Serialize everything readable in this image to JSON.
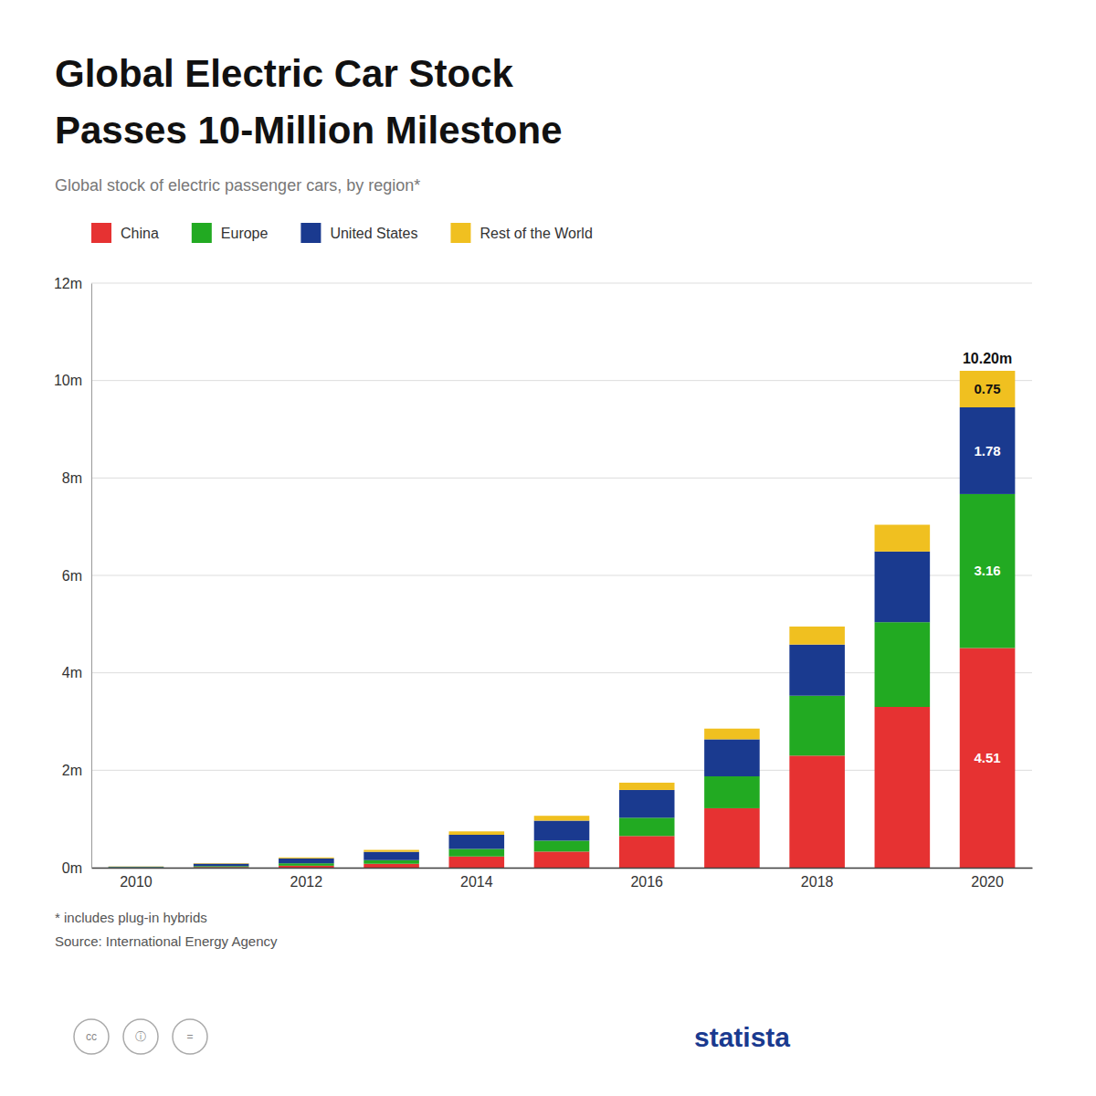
{
  "chart_data": {
    "type": "bar",
    "stacked": true,
    "title": [
      "Global Electric Car Stock",
      "Passes 10-Million Milestone"
    ],
    "subtitle": "Global stock of electric passenger cars, by region*",
    "categories": [
      "2010",
      null,
      "2012",
      null,
      "2014",
      null,
      "2016",
      null,
      "2018",
      null,
      "2020"
    ],
    "series": [
      {
        "name": "China",
        "color": "#e63232",
        "values": [
          0.001,
          0.013,
          0.04,
          0.08,
          0.23,
          0.33,
          0.65,
          1.22,
          2.3,
          3.3,
          4.51
        ]
      },
      {
        "name": "Europe",
        "color": "#22aa22",
        "values": [
          0.01,
          0.02,
          0.05,
          0.075,
          0.155,
          0.225,
          0.375,
          0.655,
          1.23,
          1.74,
          3.16
        ]
      },
      {
        "name": "United States",
        "color": "#1a3a8f",
        "values": [
          0.01,
          0.05,
          0.1,
          0.17,
          0.29,
          0.41,
          0.57,
          0.76,
          1.05,
          1.45,
          1.78
        ]
      },
      {
        "name": "Rest of the World",
        "color": "#f0c020",
        "values": [
          0.005,
          0.01,
          0.02,
          0.04,
          0.07,
          0.1,
          0.15,
          0.22,
          0.37,
          0.55,
          0.75
        ]
      }
    ],
    "ylim": [
      0,
      12
    ],
    "yticks": [
      {
        "value": 0,
        "label": "0m"
      },
      {
        "value": 2,
        "label": "2m"
      },
      {
        "value": 4,
        "label": "4m"
      },
      {
        "value": 6,
        "label": "6m"
      },
      {
        "value": 8,
        "label": "8m"
      },
      {
        "value": 10,
        "label": "10m"
      },
      {
        "value": 12,
        "label": "12m"
      }
    ],
    "grid": true,
    "legend": "top-left",
    "annotations": [
      {
        "text": "10.20m",
        "category": "2020"
      },
      {
        "text": "4.51",
        "category": "2020",
        "series": "China"
      },
      {
        "text": "3.16",
        "category": "2020",
        "series": "Europe"
      },
      {
        "text": "1.78",
        "category": "2020",
        "series": "United States"
      },
      {
        "text": "0.75",
        "category": "2020",
        "series": "Rest of the World"
      }
    ],
    "footnotes": [
      "* includes plug-in hybrids",
      "Source: International Energy Agency"
    ],
    "branding": "statista",
    "license_icons": [
      "cc",
      "ⓘ",
      "="
    ]
  }
}
